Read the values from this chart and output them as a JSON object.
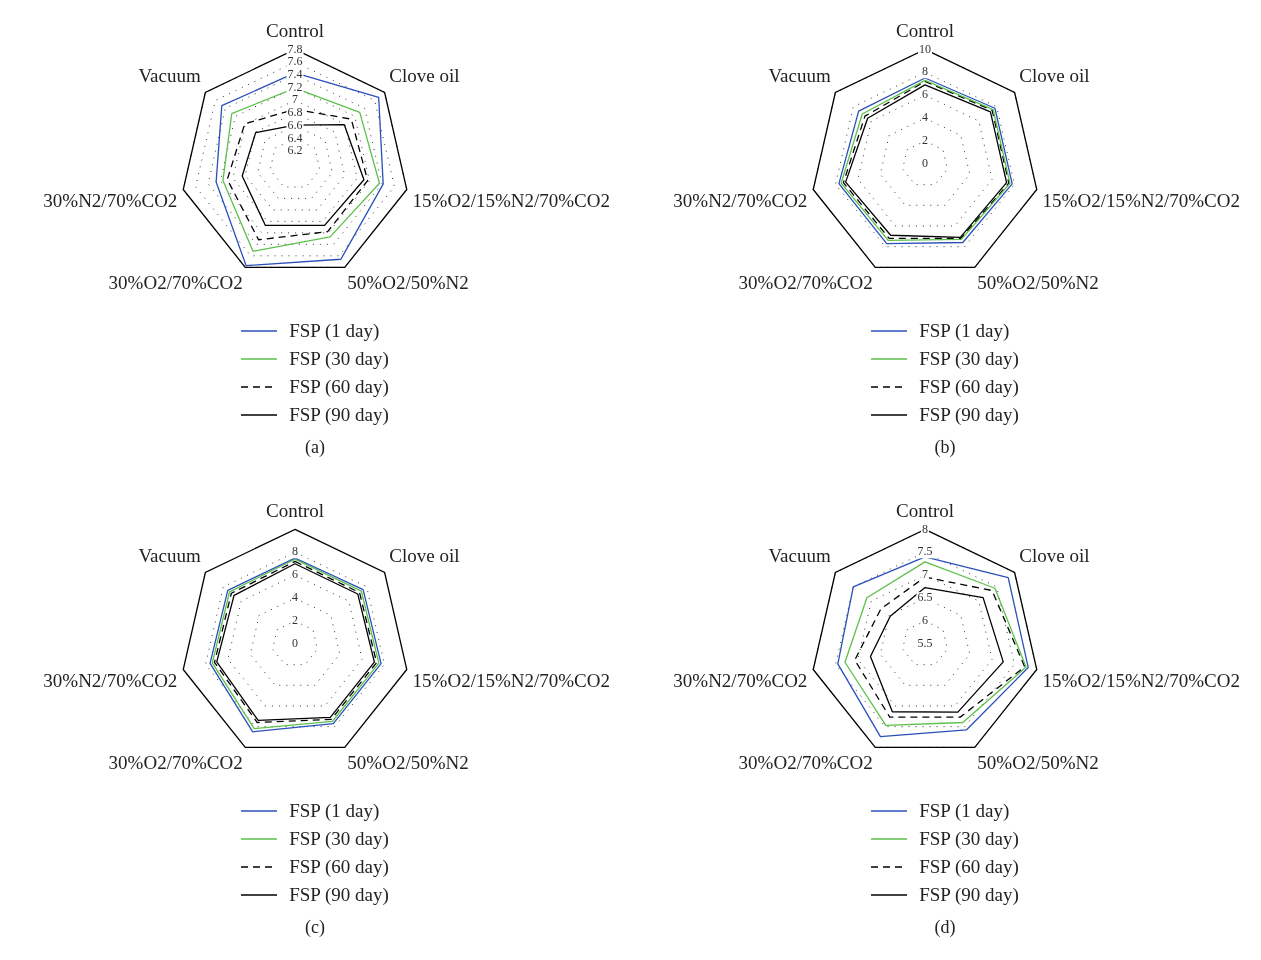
{
  "chart_data": [
    {
      "type": "radar",
      "title": "(a)",
      "categories": [
        "Control",
        "Clove oil",
        "15%O2/15%N2/70%CO2",
        "50%O2/50%N2",
        "30%O2/70%CO2",
        "30%N2/70%CO2",
        "Vacuum"
      ],
      "ylim": [
        6,
        7.8
      ],
      "yticks": [
        6.2,
        6.4,
        6.6,
        6.8,
        7,
        7.2,
        7.4,
        7.6,
        7.8
      ],
      "grid": true,
      "legend": "bottom",
      "marker": "none",
      "series": [
        {
          "name": "FSP (1 day)",
          "color": "#2a50b8",
          "values": [
            7.43,
            7.68,
            7.42,
            7.66,
            7.77,
            7.27,
            7.47
          ]
        },
        {
          "name": "FSP (30 day)",
          "color": "#5cc04a",
          "values": [
            7.19,
            7.3,
            7.36,
            7.27,
            7.52,
            7.16,
            7.27
          ]
        },
        {
          "name": "FSP (60 day)",
          "color": "#000000",
          "line_style": "dashed",
          "values": [
            6.86,
            7.13,
            7.17,
            7.18,
            7.32,
            7.09,
            7.01
          ]
        },
        {
          "name": "FSP (90 day)",
          "color": "#000000",
          "values": [
            6.61,
            6.99,
            7.11,
            7.07,
            7.07,
            6.85,
            6.79
          ]
        }
      ]
    },
    {
      "type": "radar",
      "title": "(b)",
      "categories": [
        "Control",
        "Clove oil",
        "15%O2/15%N2/70%CO2",
        "50%O2/50%N2",
        "30%O2/70%CO2",
        "30%N2/70%CO2",
        "Vacuum"
      ],
      "ylim": [
        0,
        10
      ],
      "yticks": [
        0,
        2,
        4,
        6,
        8,
        10
      ],
      "grid": true,
      "legend": "bottom",
      "marker": "none",
      "series": [
        {
          "name": "FSP (1 day)",
          "color": "#2a50b8",
          "values": [
            7.5,
            7.8,
            7.8,
            7.6,
            7.7,
            7.7,
            7.4
          ]
        },
        {
          "name": "FSP (30 day)",
          "color": "#5cc04a",
          "values": [
            7.3,
            7.6,
            7.6,
            7.3,
            7.4,
            7.5,
            7.0
          ]
        },
        {
          "name": "FSP (60 day)",
          "color": "#000000",
          "line_style": "dashed",
          "values": [
            7.2,
            7.5,
            7.5,
            7.2,
            7.2,
            7.3,
            6.7
          ]
        },
        {
          "name": "FSP (90 day)",
          "color": "#000000",
          "values": [
            6.9,
            7.3,
            7.3,
            7.1,
            6.9,
            7.1,
            6.4
          ]
        }
      ]
    },
    {
      "type": "radar",
      "title": "(c)",
      "categories": [
        "Control",
        "Clove oil",
        "15%O2/15%N2/70%CO2",
        "50%O2/50%N2",
        "30%O2/70%CO2",
        "30%N2/70%CO2",
        "Vacuum"
      ],
      "ylim": [
        0,
        10
      ],
      "yticks": [
        0,
        2,
        4,
        6,
        8
      ],
      "grid": true,
      "legend": "bottom",
      "marker": "none",
      "series": [
        {
          "name": "FSP (1 day)",
          "color": "#2a50b8",
          "values": [
            7.5,
            7.6,
            7.7,
            7.7,
            8.5,
            7.6,
            7.5
          ]
        },
        {
          "name": "FSP (30 day)",
          "color": "#5cc04a",
          "values": [
            7.4,
            7.4,
            7.5,
            7.5,
            8.2,
            7.4,
            7.3
          ]
        },
        {
          "name": "FSP (60 day)",
          "color": "#000000",
          "line_style": "dashed",
          "values": [
            7.2,
            7.2,
            7.3,
            7.3,
            7.6,
            7.2,
            7.1
          ]
        },
        {
          "name": "FSP (90 day)",
          "color": "#000000",
          "values": [
            7.0,
            7.0,
            7.1,
            7.1,
            7.4,
            7.0,
            6.8
          ]
        }
      ]
    },
    {
      "type": "radar",
      "title": "(d)",
      "categories": [
        "Control",
        "Clove oil",
        "15%O2/15%N2/70%CO2",
        "50%O2/50%N2",
        "30%O2/70%CO2",
        "30%N2/70%CO2",
        "Vacuum"
      ],
      "ylim": [
        5.5,
        8
      ],
      "yticks": [
        5.5,
        6,
        6.5,
        7,
        7.5,
        8
      ],
      "grid": true,
      "legend": "bottom",
      "marker": "none",
      "series": [
        {
          "name": "FSP (1 day)",
          "color": "#2a50b8",
          "values": [
            7.4,
            7.82,
            7.81,
            7.58,
            7.74,
            7.45,
            7.5
          ]
        },
        {
          "name": "FSP (30 day)",
          "color": "#5cc04a",
          "values": [
            7.29,
            7.45,
            7.76,
            7.4,
            7.47,
            7.29,
            7.12
          ]
        },
        {
          "name": "FSP (60 day)",
          "color": "#000000",
          "line_style": "dashed",
          "values": [
            6.96,
            7.37,
            7.73,
            7.27,
            7.27,
            7.07,
            6.73
          ]
        },
        {
          "name": "FSP (90 day)",
          "color": "#000000",
          "values": [
            6.73,
            7.12,
            7.25,
            7.15,
            7.14,
            6.72,
            6.47
          ]
        }
      ]
    }
  ]
}
